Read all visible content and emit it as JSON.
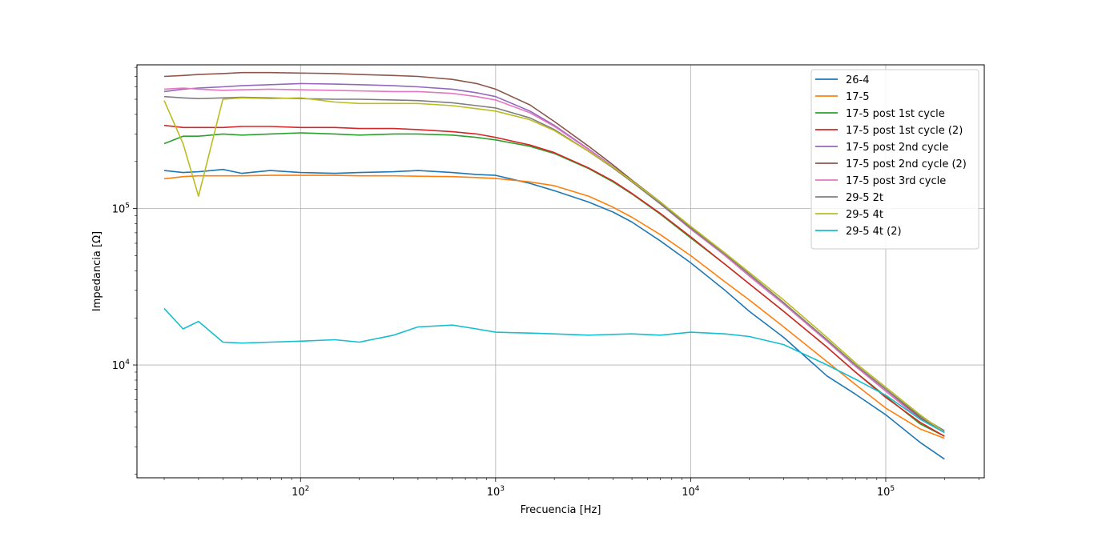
{
  "chart_data": {
    "type": "line",
    "xscale": "log",
    "yscale": "log",
    "xlabel": "Frecuencia [Hz]",
    "ylabel": "Impedancia [Ω]",
    "xlim": [
      14.5,
      320000
    ],
    "ylim": [
      1900,
      830000
    ],
    "x_ticks": [
      {
        "value": 100,
        "base": "10",
        "exp": "2"
      },
      {
        "value": 1000,
        "base": "10",
        "exp": "3"
      },
      {
        "value": 10000,
        "base": "10",
        "exp": "4"
      },
      {
        "value": 100000,
        "base": "10",
        "exp": "5"
      }
    ],
    "y_ticks": [
      {
        "value": 10000,
        "base": "10",
        "exp": "4"
      },
      {
        "value": 100000,
        "base": "10",
        "exp": "5"
      }
    ],
    "grid": true,
    "legend_position": "top-right",
    "x": [
      20,
      25,
      30,
      40,
      50,
      70,
      100,
      150,
      200,
      300,
      400,
      600,
      800,
      1000,
      1500,
      2000,
      3000,
      4000,
      5000,
      7000,
      10000,
      15000,
      20000,
      30000,
      50000,
      70000,
      100000,
      150000,
      200000
    ],
    "series": [
      {
        "name": "26-4",
        "color": "#1f77b4",
        "values": [
          175000,
          170000,
          172000,
          178000,
          168000,
          175000,
          170000,
          168000,
          170000,
          172000,
          175000,
          170000,
          165000,
          163000,
          145000,
          130000,
          110000,
          95000,
          82000,
          62000,
          45000,
          30000,
          22000,
          15000,
          8500,
          6500,
          4800,
          3200,
          2500
        ]
      },
      {
        "name": "17-5",
        "color": "#ff7f0e",
        "values": [
          155000,
          160000,
          162000,
          162000,
          162000,
          163000,
          163000,
          163000,
          162000,
          162000,
          161000,
          160000,
          158000,
          156000,
          148000,
          140000,
          120000,
          102000,
          88000,
          68000,
          50000,
          34000,
          26000,
          17500,
          10500,
          7500,
          5300,
          3900,
          3400
        ]
      },
      {
        "name": "17-5 post 1st cycle",
        "color": "#2ca02c",
        "values": [
          260000,
          290000,
          290000,
          300000,
          295000,
          300000,
          305000,
          300000,
          295000,
          300000,
          300000,
          295000,
          285000,
          275000,
          250000,
          225000,
          180000,
          148000,
          124000,
          92000,
          65000,
          44000,
          33000,
          22000,
          13000,
          9000,
          6300,
          4200,
          3500
        ]
      },
      {
        "name": "17-5 post 1st cycle (2)",
        "color": "#d62728",
        "values": [
          340000,
          330000,
          330000,
          330000,
          335000,
          335000,
          330000,
          330000,
          325000,
          325000,
          320000,
          310000,
          300000,
          285000,
          255000,
          228000,
          182000,
          150000,
          125000,
          93000,
          66000,
          44000,
          33000,
          22000,
          13000,
          9000,
          6200,
          4300,
          3500
        ]
      },
      {
        "name": "17-5 post 2nd cycle",
        "color": "#9467bd",
        "values": [
          560000,
          580000,
          590000,
          600000,
          610000,
          620000,
          630000,
          625000,
          620000,
          610000,
          600000,
          580000,
          550000,
          520000,
          420000,
          340000,
          240000,
          185000,
          150000,
          108000,
          75000,
          50000,
          37000,
          24500,
          14200,
          9800,
          6800,
          4500,
          3700
        ]
      },
      {
        "name": "17-5 post 2nd cycle (2)",
        "color": "#8c564b",
        "values": [
          700000,
          710000,
          720000,
          730000,
          740000,
          740000,
          735000,
          730000,
          720000,
          710000,
          700000,
          670000,
          630000,
          580000,
          460000,
          360000,
          250000,
          190000,
          152000,
          110000,
          76000,
          51000,
          38000,
          25000,
          14400,
          10000,
          7000,
          4600,
          3700
        ]
      },
      {
        "name": "17-5 post 3rd cycle",
        "color": "#e377c2",
        "values": [
          580000,
          590000,
          580000,
          570000,
          575000,
          580000,
          575000,
          570000,
          565000,
          560000,
          560000,
          545000,
          520000,
          495000,
          410000,
          335000,
          238000,
          184000,
          149000,
          107000,
          74000,
          50000,
          37000,
          24500,
          14200,
          9800,
          6800,
          4500,
          3700
        ]
      },
      {
        "name": "29-5 2t",
        "color": "#7f7f7f",
        "values": [
          520000,
          510000,
          505000,
          510000,
          515000,
          510000,
          505000,
          500000,
          500000,
          495000,
          490000,
          475000,
          455000,
          440000,
          380000,
          320000,
          232000,
          182000,
          148000,
          107000,
          75000,
          51000,
          38000,
          25000,
          14500,
          10000,
          7000,
          4700,
          3800
        ]
      },
      {
        "name": "29-5 4t",
        "color": "#bcbd22",
        "values": [
          490000,
          260000,
          120000,
          500000,
          510000,
          505000,
          510000,
          480000,
          470000,
          470000,
          470000,
          455000,
          435000,
          420000,
          370000,
          315000,
          232000,
          184000,
          150000,
          110000,
          77000,
          52000,
          39000,
          26000,
          15000,
          10300,
          7200,
          4800,
          3700
        ]
      },
      {
        "name": "29-5 4t (2)",
        "color": "#17becf",
        "values": [
          23000,
          17000,
          19000,
          14000,
          13800,
          14000,
          14200,
          14500,
          14000,
          15500,
          17500,
          18000,
          17000,
          16200,
          16000,
          15800,
          15500,
          15700,
          15800,
          15500,
          16200,
          15800,
          15200,
          13500,
          10000,
          8100,
          6400,
          4500,
          3700
        ]
      }
    ]
  }
}
